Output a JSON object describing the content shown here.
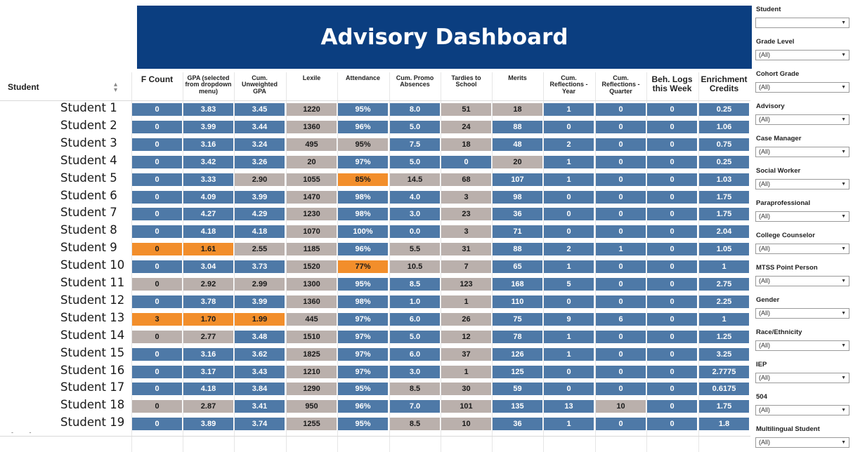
{
  "title": "Advisory Dashboard",
  "table": {
    "student_header": "Student",
    "sort_icon": "sort-icon",
    "columns": [
      "F Count",
      "GPA (selected from dropdown menu)",
      "Cum. Unweighted GPA",
      "Lexile",
      "Attendance",
      "Cum. Promo Absences",
      "Tardies to School",
      "Merits",
      "Cum. Reflections - Year",
      "Cum. Reflections - Quarter",
      "Beh. Logs this Week",
      "Enrichment Credits"
    ],
    "colors": {
      "blue": "#4e79a7",
      "gray": "#bab0ac",
      "orange": "#f28e2b"
    },
    "rows": [
      {
        "student": "Student 1",
        "values": [
          "0",
          "3.83",
          "3.45",
          "1220",
          "95%",
          "8.0",
          "51",
          "18",
          "1",
          "0",
          "0",
          "0.25"
        ],
        "colors": [
          "b",
          "b",
          "b",
          "g",
          "b",
          "b",
          "g",
          "g",
          "b",
          "b",
          "b",
          "b"
        ]
      },
      {
        "student": "Student 2",
        "values": [
          "0",
          "3.99",
          "3.44",
          "1360",
          "96%",
          "5.0",
          "24",
          "88",
          "0",
          "0",
          "0",
          "1.06"
        ],
        "colors": [
          "b",
          "b",
          "b",
          "g",
          "b",
          "b",
          "g",
          "b",
          "b",
          "b",
          "b",
          "b"
        ]
      },
      {
        "student": "Student 3",
        "values": [
          "0",
          "3.16",
          "3.24",
          "495",
          "95%",
          "7.5",
          "18",
          "48",
          "2",
          "0",
          "0",
          "0.75"
        ],
        "colors": [
          "b",
          "b",
          "b",
          "g",
          "g",
          "b",
          "g",
          "b",
          "b",
          "b",
          "b",
          "b"
        ]
      },
      {
        "student": "Student 4",
        "values": [
          "0",
          "3.42",
          "3.26",
          "20",
          "97%",
          "5.0",
          "0",
          "20",
          "1",
          "0",
          "0",
          "0.25"
        ],
        "colors": [
          "b",
          "b",
          "b",
          "g",
          "b",
          "b",
          "b",
          "g",
          "b",
          "b",
          "b",
          "b"
        ]
      },
      {
        "student": "Student 5",
        "values": [
          "0",
          "3.33",
          "2.90",
          "1055",
          "85%",
          "14.5",
          "68",
          "107",
          "1",
          "0",
          "0",
          "1.03"
        ],
        "colors": [
          "b",
          "b",
          "g",
          "g",
          "o",
          "g",
          "g",
          "b",
          "b",
          "b",
          "b",
          "b"
        ]
      },
      {
        "student": "Student 6",
        "values": [
          "0",
          "4.09",
          "3.99",
          "1470",
          "98%",
          "4.0",
          "3",
          "98",
          "0",
          "0",
          "0",
          "1.75"
        ],
        "colors": [
          "b",
          "b",
          "b",
          "g",
          "b",
          "b",
          "g",
          "b",
          "b",
          "b",
          "b",
          "b"
        ]
      },
      {
        "student": "Student 7",
        "values": [
          "0",
          "4.27",
          "4.29",
          "1230",
          "98%",
          "3.0",
          "23",
          "36",
          "0",
          "0",
          "0",
          "1.75"
        ],
        "colors": [
          "b",
          "b",
          "b",
          "g",
          "b",
          "b",
          "g",
          "b",
          "b",
          "b",
          "b",
          "b"
        ]
      },
      {
        "student": "Student 8",
        "values": [
          "0",
          "4.18",
          "4.18",
          "1070",
          "100%",
          "0.0",
          "3",
          "71",
          "0",
          "0",
          "0",
          "2.04"
        ],
        "colors": [
          "b",
          "b",
          "b",
          "g",
          "b",
          "b",
          "g",
          "b",
          "b",
          "b",
          "b",
          "b"
        ]
      },
      {
        "student": "Student 9",
        "values": [
          "0",
          "1.61",
          "2.55",
          "1185",
          "96%",
          "5.5",
          "31",
          "88",
          "2",
          "1",
          "0",
          "1.05"
        ],
        "colors": [
          "o",
          "o",
          "g",
          "g",
          "b",
          "g",
          "g",
          "b",
          "b",
          "b",
          "b",
          "b"
        ]
      },
      {
        "student": "Student 10",
        "values": [
          "0",
          "3.04",
          "3.73",
          "1520",
          "77%",
          "10.5",
          "7",
          "65",
          "1",
          "0",
          "0",
          "1"
        ],
        "colors": [
          "b",
          "b",
          "b",
          "g",
          "o",
          "g",
          "g",
          "b",
          "b",
          "b",
          "b",
          "b"
        ]
      },
      {
        "student": "Student 11",
        "values": [
          "0",
          "2.92",
          "2.99",
          "1300",
          "95%",
          "8.5",
          "123",
          "168",
          "5",
          "0",
          "0",
          "2.75"
        ],
        "colors": [
          "g",
          "g",
          "g",
          "g",
          "b",
          "b",
          "g",
          "b",
          "b",
          "b",
          "b",
          "b"
        ]
      },
      {
        "student": "Student 12",
        "values": [
          "0",
          "3.78",
          "3.99",
          "1360",
          "98%",
          "1.0",
          "1",
          "110",
          "0",
          "0",
          "0",
          "2.25"
        ],
        "colors": [
          "b",
          "b",
          "b",
          "g",
          "b",
          "b",
          "g",
          "b",
          "b",
          "b",
          "b",
          "b"
        ]
      },
      {
        "student": "Student 13",
        "values": [
          "3",
          "1.70",
          "1.99",
          "445",
          "97%",
          "6.0",
          "26",
          "75",
          "9",
          "6",
          "0",
          "1"
        ],
        "colors": [
          "o",
          "o",
          "o",
          "g",
          "b",
          "b",
          "g",
          "b",
          "b",
          "b",
          "b",
          "b"
        ]
      },
      {
        "student": "Student 14",
        "values": [
          "0",
          "2.77",
          "3.48",
          "1510",
          "97%",
          "5.0",
          "12",
          "78",
          "1",
          "0",
          "0",
          "1.25"
        ],
        "colors": [
          "g",
          "g",
          "b",
          "g",
          "b",
          "b",
          "g",
          "b",
          "b",
          "b",
          "b",
          "b"
        ]
      },
      {
        "student": "Student 15",
        "values": [
          "0",
          "3.16",
          "3.62",
          "1825",
          "97%",
          "6.0",
          "37",
          "126",
          "1",
          "0",
          "0",
          "3.25"
        ],
        "colors": [
          "b",
          "b",
          "b",
          "g",
          "b",
          "b",
          "g",
          "b",
          "b",
          "b",
          "b",
          "b"
        ]
      },
      {
        "student": "Student 16",
        "values": [
          "0",
          "3.17",
          "3.43",
          "1210",
          "97%",
          "3.0",
          "1",
          "125",
          "0",
          "0",
          "0",
          "2.7775"
        ],
        "colors": [
          "b",
          "b",
          "b",
          "g",
          "b",
          "b",
          "g",
          "b",
          "b",
          "b",
          "b",
          "b"
        ]
      },
      {
        "student": "Student 17",
        "values": [
          "0",
          "4.18",
          "3.84",
          "1290",
          "95%",
          "8.5",
          "30",
          "59",
          "0",
          "0",
          "0",
          "0.6175"
        ],
        "colors": [
          "b",
          "b",
          "b",
          "g",
          "b",
          "g",
          "g",
          "b",
          "b",
          "b",
          "b",
          "b"
        ]
      },
      {
        "student": "Student 18",
        "values": [
          "0",
          "2.87",
          "3.41",
          "950",
          "96%",
          "7.0",
          "101",
          "135",
          "13",
          "10",
          "0",
          "1.75"
        ],
        "colors": [
          "g",
          "g",
          "b",
          "g",
          "b",
          "b",
          "g",
          "b",
          "b",
          "g",
          "b",
          "b"
        ]
      },
      {
        "student": "Student 19",
        "values": [
          "0",
          "3.89",
          "3.74",
          "1255",
          "95%",
          "8.5",
          "10",
          "36",
          "1",
          "0",
          "0",
          "1.8"
        ],
        "colors": [
          "b",
          "b",
          "b",
          "g",
          "b",
          "g",
          "g",
          "b",
          "b",
          "b",
          "b",
          "b"
        ]
      }
    ]
  },
  "filters": [
    {
      "label": "Student",
      "value": ""
    },
    {
      "label": "Grade Level",
      "value": "(All)"
    },
    {
      "label": "Cohort Grade",
      "value": "(All)"
    },
    {
      "label": "Advisory",
      "value": "(All)"
    },
    {
      "label": "Case Manager",
      "value": "(All)"
    },
    {
      "label": "Social Worker",
      "value": "(All)"
    },
    {
      "label": "Paraprofessional",
      "value": "(All)"
    },
    {
      "label": "College Counselor",
      "value": "(All)"
    },
    {
      "label": "MTSS Point Person",
      "value": "(All)"
    },
    {
      "label": "Gender",
      "value": "(All)"
    },
    {
      "label": "Race/Ethnicity",
      "value": "(All)"
    },
    {
      "label": "IEP",
      "value": "(All)"
    },
    {
      "label": "504",
      "value": "(All)"
    },
    {
      "label": "Multilingual Student",
      "value": "(All)"
    }
  ],
  "icons": {
    "dropdown": "chevron-down-icon",
    "sort": "sort-icon"
  }
}
